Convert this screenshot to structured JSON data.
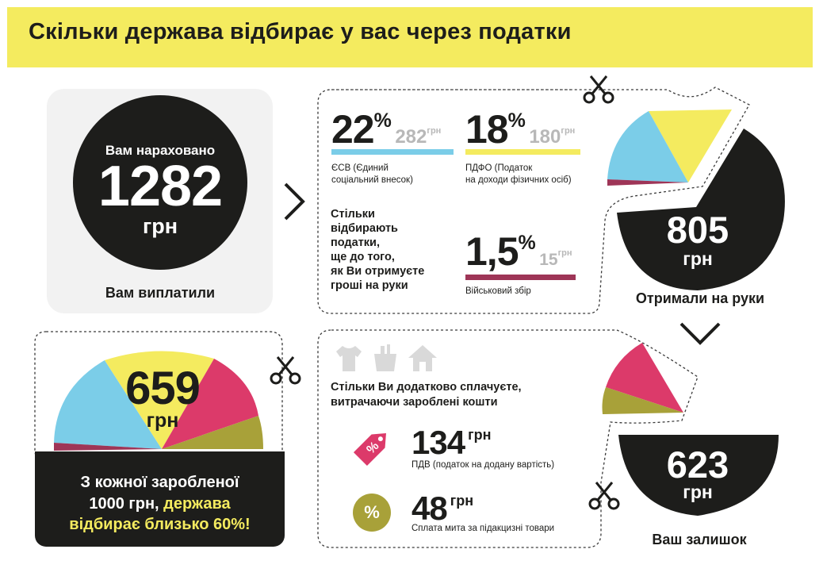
{
  "title": "Скільки держава відбирає у вас через податки",
  "charged": {
    "caption": "Вам нараховано",
    "value": "1282",
    "unit": "грн",
    "paid_label": "Вам виплатили"
  },
  "taxes": {
    "esv": {
      "percent": "22",
      "percent_sign": "%",
      "amount": "282",
      "unit": "грн",
      "description_line1": "ЄСВ (Єдиний",
      "description_line2": "соціальний внесок)",
      "color": "#7bcde8"
    },
    "pdfo": {
      "percent": "18",
      "percent_sign": "%",
      "amount": "180",
      "unit": "грн",
      "description_line1": "ПДФО (Податок",
      "description_line2": "на доходи фізичних осіб)",
      "color": "#f4eb5f"
    },
    "military": {
      "percent": "1,5",
      "percent_sign": "%",
      "amount": "15",
      "unit": "грн",
      "description": "Військовий збір",
      "color": "#9e3557"
    },
    "takes_text": [
      "Стільки",
      "відбирають",
      "податки,",
      "ще до того,",
      "як Ви отримуєте",
      "гроші на руки"
    ]
  },
  "received": {
    "value": "805",
    "unit": "грн",
    "label": "Отримали на руки"
  },
  "extra": {
    "icons": [
      "tshirt-icon",
      "grocery-bag-icon",
      "house-icon"
    ],
    "text_line1": "Стільки Ви додатково сплачуєте,",
    "text_line2": "витрачаючи зароблені кошти",
    "vat": {
      "amount": "134",
      "unit": "грн",
      "description": "ПДВ (податок на додану вартість)",
      "color": "#dc3a6a"
    },
    "excise": {
      "amount": "48",
      "unit": "грн",
      "description": "Сплата мита за підакцизні товари",
      "icon_label": "%",
      "color": "#a8a139"
    }
  },
  "remaining": {
    "value": "623",
    "unit": "грн",
    "label": "Ваш залишок"
  },
  "total": {
    "value": "659",
    "unit": "грн",
    "text_line1": "З кожної заробленої",
    "text_line2_plain": "1000 грн, ",
    "text_line2_highlight": "держава",
    "text_line3_highlight": "відбирає близько 60%!"
  },
  "colors": {
    "yellow": "#f4eb5f",
    "blue": "#7bcde8",
    "crimson": "#9e3557",
    "pink": "#dc3a6a",
    "olive": "#a8a139",
    "dark": "#1d1d1b",
    "grey": "#b8b8b8"
  }
}
